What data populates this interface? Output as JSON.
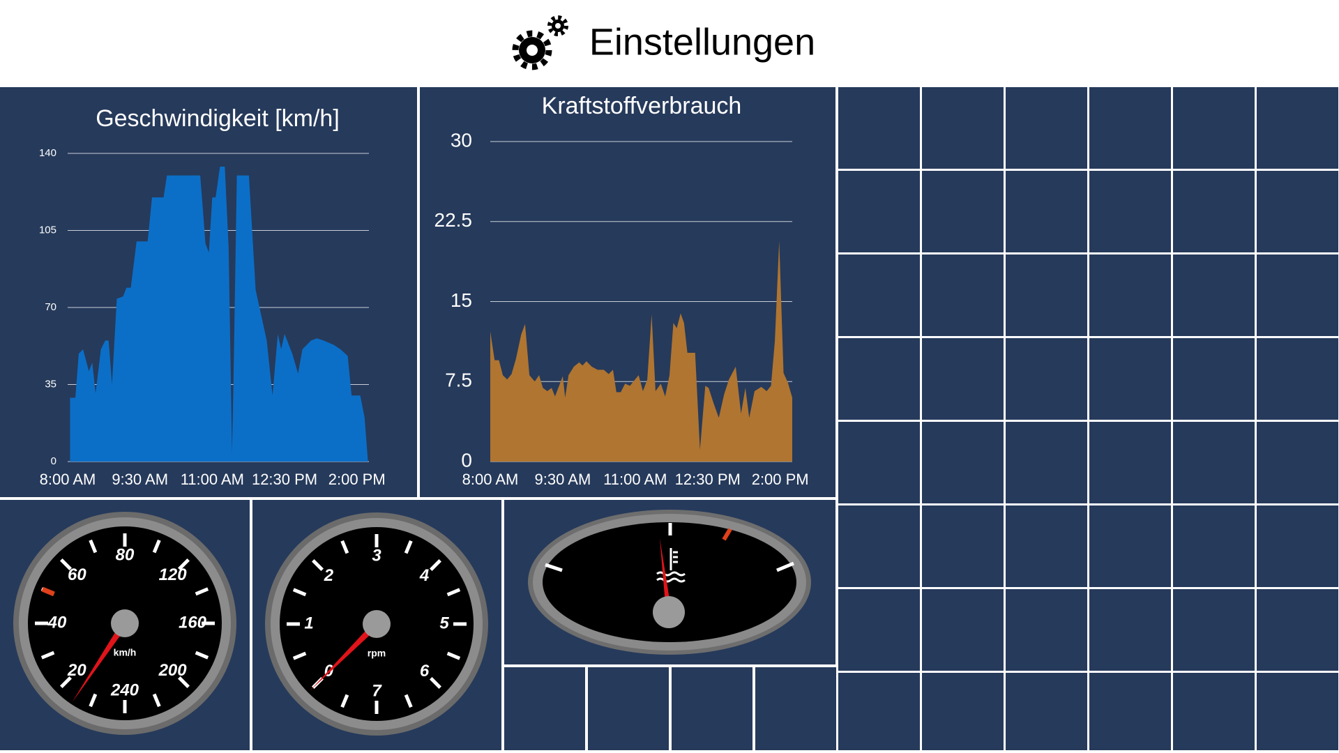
{
  "header": {
    "title": "Einstellungen"
  },
  "chart_data": [
    {
      "type": "area",
      "title": "Geschwindigkeit [km/h]",
      "color": "#0b6fc8",
      "grid": true,
      "x": [
        8.05,
        8.16,
        8.23,
        8.32,
        8.44,
        8.51,
        8.58,
        8.69,
        8.78,
        8.85,
        8.92,
        9.02,
        9.15,
        9.22,
        9.31,
        9.43,
        9.66,
        9.75,
        9.99,
        10.06,
        10.75,
        10.86,
        10.93,
        11.0,
        11.07,
        11.16,
        11.26,
        11.34,
        11.41,
        11.44,
        11.51,
        11.76,
        11.9,
        12.13,
        12.25,
        12.36,
        12.43,
        12.5,
        12.66,
        12.78,
        12.87,
        13.05,
        13.17,
        13.31,
        13.52,
        13.66,
        13.81,
        13.89,
        14.07,
        14.16,
        14.23
      ],
      "values": [
        29,
        29,
        49,
        51,
        41,
        45,
        31,
        51,
        55,
        55,
        35,
        74,
        75,
        79,
        79,
        100,
        100,
        120,
        120,
        130,
        130,
        99,
        95,
        120,
        120,
        134,
        134,
        97,
        4,
        36,
        130,
        130,
        78,
        55,
        30,
        58,
        51,
        58,
        49,
        40,
        51,
        55,
        56,
        55,
        53,
        51,
        48,
        30,
        30,
        20,
        0
      ],
      "xlim": [
        8,
        14.25
      ],
      "ylim": [
        0,
        140
      ],
      "xticks": [
        {
          "value": 8,
          "label": "8:00 AM"
        },
        {
          "value": 9.5,
          "label": "9:30 AM"
        },
        {
          "value": 11,
          "label": "11:00 AM"
        },
        {
          "value": 12.5,
          "label": "12:30 PM"
        },
        {
          "value": 14,
          "label": "2:00 PM"
        }
      ],
      "yticks": [
        0,
        35,
        70,
        105,
        140
      ]
    },
    {
      "type": "area",
      "title": "Kraftstoffverbrauch",
      "color": "#b07530",
      "grid": true,
      "x": [
        8.0,
        8.09,
        8.18,
        8.26,
        8.35,
        8.44,
        8.53,
        8.64,
        8.72,
        8.81,
        8.92,
        9.01,
        9.09,
        9.18,
        9.27,
        9.34,
        9.45,
        9.5,
        9.55,
        9.62,
        9.73,
        9.84,
        9.91,
        9.99,
        10.1,
        10.22,
        10.35,
        10.45,
        10.54,
        10.61,
        10.7,
        10.79,
        10.89,
        10.98,
        11.07,
        11.16,
        11.25,
        11.34,
        11.42,
        11.53,
        11.62,
        11.71,
        11.79,
        11.86,
        11.94,
        12.01,
        12.08,
        12.24,
        12.34,
        12.45,
        12.52,
        12.62,
        12.73,
        12.84,
        12.94,
        13.08,
        13.19,
        13.28,
        13.36,
        13.47,
        13.61,
        13.72,
        13.81,
        13.89,
        13.98,
        14.07,
        14.16,
        14.25
      ],
      "values": [
        12.2,
        9.5,
        9.5,
        8.1,
        7.7,
        8.2,
        9.6,
        11.9,
        12.9,
        8.1,
        7.5,
        8.1,
        6.9,
        6.6,
        6.9,
        6.1,
        7.4,
        8.0,
        6.0,
        8.1,
        8.9,
        9.3,
        9.0,
        9.4,
        8.9,
        8.6,
        8.6,
        8.2,
        8.6,
        6.5,
        6.5,
        7.3,
        7.1,
        7.6,
        8.1,
        6.6,
        7.7,
        13.8,
        6.6,
        7.3,
        6.1,
        8.1,
        13.0,
        12.5,
        13.9,
        13.0,
        10.2,
        10.2,
        1.1,
        7.1,
        6.9,
        5.5,
        4.1,
        6.3,
        7.7,
        8.9,
        4.5,
        6.9,
        4.1,
        6.6,
        7.0,
        6.6,
        7.1,
        11.3,
        20.7,
        8.3,
        7.4,
        6.0
      ],
      "xlim": [
        8,
        14.25
      ],
      "ylim": [
        0,
        30
      ],
      "xticks": [
        {
          "value": 8,
          "label": "8:00 AM"
        },
        {
          "value": 9.5,
          "label": "9:30 AM"
        },
        {
          "value": 11,
          "label": "11:00 AM"
        },
        {
          "value": 12.5,
          "label": "12:30 PM"
        },
        {
          "value": 14,
          "label": "2:00 PM"
        }
      ],
      "yticks": [
        0,
        7.5,
        15,
        22.5,
        30
      ]
    }
  ],
  "gauges": [
    {
      "unit": "km/h",
      "labels": [
        20,
        40,
        60,
        80,
        120,
        160,
        200,
        240
      ],
      "value": 15
    },
    {
      "unit": "rpm",
      "labels": [
        0,
        1,
        2,
        3,
        4,
        5,
        6,
        7
      ],
      "value": 0
    }
  ]
}
